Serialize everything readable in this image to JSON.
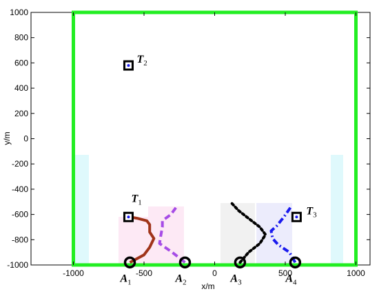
{
  "chart_data": {
    "type": "scatter",
    "xlabel": "x/m",
    "ylabel": "y/m",
    "xlim": [
      -1300,
      1100
    ],
    "ylim": [
      -1000,
      1000
    ],
    "xticks": [
      {
        "value": -1000,
        "label": "-1000"
      },
      {
        "value": -500,
        "label": "-500"
      },
      {
        "value": 0,
        "label": "0"
      },
      {
        "value": 500,
        "label": "500"
      },
      {
        "value": 1000,
        "label": "1000"
      }
    ],
    "yticks": [
      {
        "value": 1000,
        "label": "1000"
      },
      {
        "value": 800,
        "label": "800"
      },
      {
        "value": 600,
        "label": "600"
      },
      {
        "value": 400,
        "label": "400"
      },
      {
        "value": 200,
        "label": "200"
      },
      {
        "value": 0,
        "label": "0"
      },
      {
        "value": -200,
        "label": "-200"
      },
      {
        "value": -400,
        "label": "-400"
      },
      {
        "value": -600,
        "label": "-600"
      },
      {
        "value": -800,
        "label": "-800"
      },
      {
        "value": -1000,
        "label": "-1000"
      }
    ],
    "boundary": {
      "x": [
        -1000,
        1000
      ],
      "y": [
        -1000,
        1000
      ],
      "color": "#22ee22"
    },
    "agents": [
      {
        "main": "A",
        "sub": "1",
        "x": -600,
        "y": -980
      },
      {
        "main": "A",
        "sub": "2",
        "x": -210,
        "y": -980
      },
      {
        "main": "A",
        "sub": "3",
        "x": 180,
        "y": -980
      },
      {
        "main": "A",
        "sub": "4",
        "x": 570,
        "y": -980
      }
    ],
    "targets": [
      {
        "main": "T",
        "sub": "1",
        "x": -610,
        "y": -620
      },
      {
        "main": "T",
        "sub": "2",
        "x": -610,
        "y": 580
      },
      {
        "main": "T",
        "sub": "3",
        "x": 580,
        "y": -620
      }
    ],
    "series": [
      {
        "color": "#a0341a",
        "style": "solid",
        "x": [
          -600,
          -500,
          -460,
          -430,
          -460,
          -460,
          -480,
          -550,
          -600,
          -610
        ],
        "y": [
          -980,
          -920,
          -860,
          -790,
          -740,
          -680,
          -650,
          -630,
          -620,
          -620
        ]
      },
      {
        "color": "#a64ce6",
        "style": "dash",
        "x": [
          -210,
          -300,
          -390,
          -380,
          -370,
          -370,
          -310,
          -270
        ],
        "y": [
          -980,
          -900,
          -830,
          -760,
          -700,
          -650,
          -600,
          -540
        ]
      },
      {
        "color": "#000000",
        "style": "dot",
        "x": [
          180,
          240,
          320,
          360,
          320,
          250,
          170,
          120
        ],
        "y": [
          -980,
          -900,
          -830,
          -760,
          -700,
          -640,
          -570,
          -510
        ]
      },
      {
        "color": "#1a1aee",
        "style": "dashdot",
        "x": [
          570,
          530,
          450,
          410,
          400,
          440,
          490,
          540
        ],
        "y": [
          -980,
          -900,
          -840,
          -790,
          -730,
          -690,
          -620,
          -540
        ]
      }
    ]
  }
}
